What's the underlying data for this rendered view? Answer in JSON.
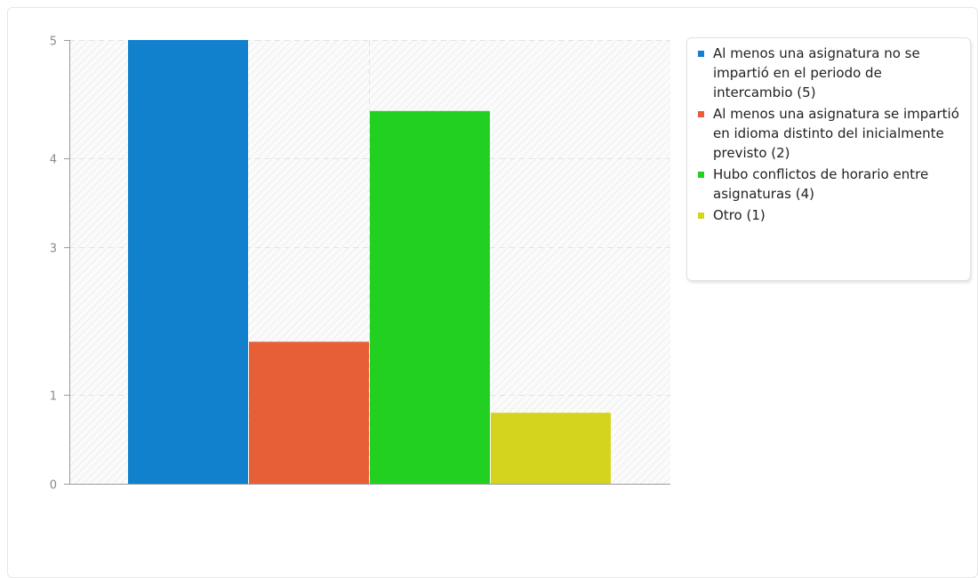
{
  "chart_data": {
    "type": "bar",
    "categories": [
      "Al menos una asignatura no se impartió en el periodo de intercambio",
      "Al menos una asignatura se impartió en idioma distinto del inicialmente previsto",
      "Hubo conflictos de horario entre asignaturas",
      "Otro"
    ],
    "values": [
      5,
      2,
      4,
      1
    ],
    "bar_heights": [
      5,
      1.6,
      4.2,
      0.8
    ],
    "ylim": [
      0,
      5
    ],
    "yticks": [
      "0",
      "1",
      "3",
      "4",
      "5"
    ],
    "ytick_values": [
      0,
      1,
      2.667,
      3.667,
      5
    ],
    "grid": true,
    "legend_position": "right",
    "colors": [
      "#1180cd",
      "#e75f36",
      "#22d022",
      "#d4d41f"
    ],
    "legend": [
      {
        "label": "Al menos una asignatura no se impartió en el periodo de intercambio (5)"
      },
      {
        "label": "Al menos una asignatura se impartió en idioma distinto del inicialmente previsto (2)"
      },
      {
        "label": "Hubo conflictos de horario entre asignaturas (4)"
      },
      {
        "label": "Otro (1)"
      }
    ]
  }
}
